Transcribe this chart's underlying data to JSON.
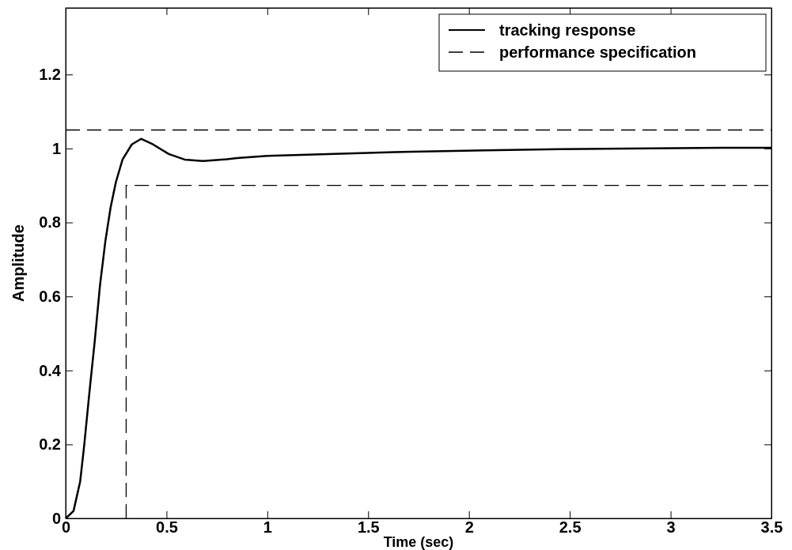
{
  "chart_data": {
    "type": "line",
    "xlabel": "Time (sec)",
    "ylabel": "Amplitude",
    "xlim": [
      0,
      3.5
    ],
    "ylim": [
      0,
      1.38
    ],
    "xticks": [
      0,
      0.5,
      1,
      1.5,
      2,
      2.5,
      3,
      3.5
    ],
    "yticks": [
      0,
      0.2,
      0.4,
      0.6,
      0.8,
      1,
      1.2
    ],
    "grid": false,
    "legend": "top right",
    "series": [
      {
        "name": "tracking response",
        "color": "#000000",
        "line_style": "solid",
        "x": [
          0,
          0.039,
          0.072,
          0.092,
          0.118,
          0.144,
          0.17,
          0.197,
          0.223,
          0.249,
          0.282,
          0.328,
          0.374,
          0.433,
          0.511,
          0.59,
          0.682,
          0.8,
          0.851,
          1.0,
          1.63,
          2.08,
          2.45,
          3.26,
          3.5
        ],
        "values": [
          0,
          0.02,
          0.1,
          0.198,
          0.342,
          0.478,
          0.629,
          0.75,
          0.841,
          0.909,
          0.97,
          1.011,
          1.026,
          1.011,
          0.985,
          0.97,
          0.966,
          0.971,
          0.974,
          0.98,
          0.99,
          0.995,
          0.998,
          1.002,
          1.002
        ]
      },
      {
        "name": "performance specification",
        "color": "#000000",
        "line_style": "dashed",
        "x": [
          0,
          3.5,
          null,
          0.3,
          0.3,
          3.5
        ],
        "values": [
          1.05,
          1.05,
          null,
          0,
          0.9,
          0.9
        ]
      }
    ]
  }
}
